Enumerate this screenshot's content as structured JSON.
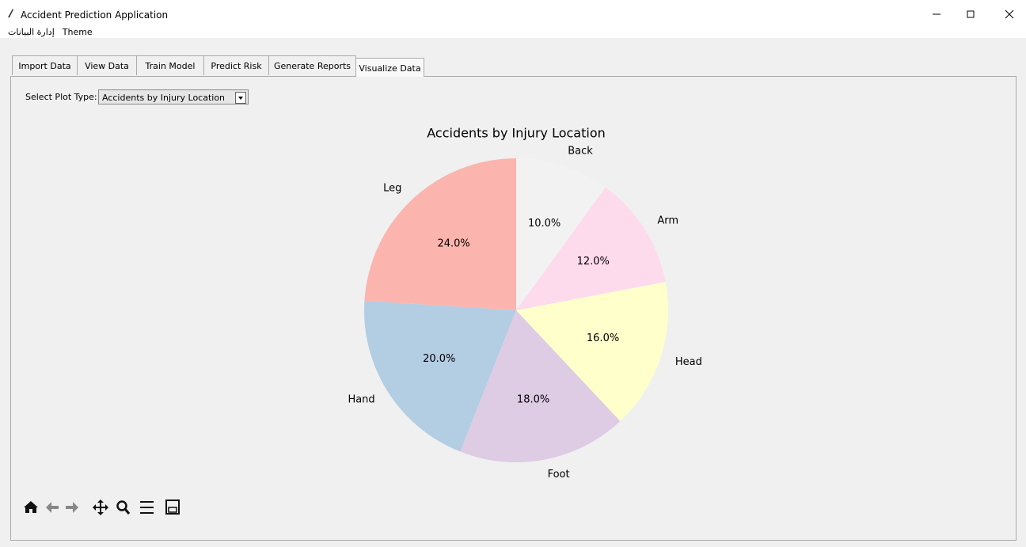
{
  "window": {
    "title": "Accident Prediction Application"
  },
  "menu": [
    "إدارة البيانات",
    "Theme"
  ],
  "tabs": [
    "Import Data",
    "View Data",
    "Train Model",
    "Predict Risk",
    "Generate Reports",
    "Visualize Data"
  ],
  "controls": {
    "label": "Select Plot Type:",
    "selected": "Accidents by Injury Location"
  },
  "chart_data": {
    "type": "pie",
    "title": "Accidents by Injury Location",
    "categories": [
      "Leg",
      "Hand",
      "Foot",
      "Head",
      "Arm",
      "Back"
    ],
    "values": [
      24,
      20,
      18,
      16,
      12,
      10
    ],
    "value_labels": [
      "24.0%",
      "20.0%",
      "18.0%",
      "16.0%",
      "12.0%",
      "10.0%"
    ],
    "colors": [
      "#fbb4ae",
      "#b3cde3",
      "#decbe4",
      "#ffffcc",
      "#fddaec",
      "#f2f2f2"
    ],
    "start_angle": 90
  }
}
